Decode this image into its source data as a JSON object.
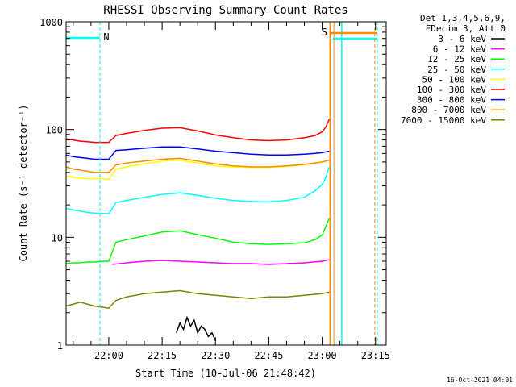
{
  "chart_data": {
    "type": "line",
    "title": "RHESSI Observing Summary Count Rates",
    "xlabel": "Start Time (10-Jul-06 21:48:42)",
    "ylabel": "Count Rate (s⁻¹ detector⁻¹)",
    "yscale": "log",
    "ylim": [
      1,
      1000
    ],
    "xlim_min": [
      -12,
      78
    ],
    "y_ticks": [
      "1",
      "10",
      "100",
      "1000"
    ],
    "x_ticks": [
      {
        "min": 0,
        "label": "22:00"
      },
      {
        "min": 15,
        "label": "22:15"
      },
      {
        "min": 30,
        "label": "22:30"
      },
      {
        "min": 45,
        "label": "22:45"
      },
      {
        "min": 60,
        "label": "23:00"
      },
      {
        "min": 75,
        "label": "23:15"
      }
    ],
    "legend_header": [
      "Det 1,3,4,5,6,9,",
      "FDecim 3, Att 0"
    ],
    "series": [
      {
        "name": "3 - 6 keV",
        "color": "#000000",
        "x": [
          19,
          20,
          21,
          22,
          23,
          24,
          25,
          26,
          27,
          28,
          29,
          30
        ],
        "y": [
          1.3,
          1.6,
          1.4,
          1.8,
          1.5,
          1.7,
          1.3,
          1.5,
          1.4,
          1.2,
          1.3,
          1.1
        ]
      },
      {
        "name": "6 - 12 keV",
        "color": "#ff00ff",
        "x": [
          1,
          5,
          10,
          15,
          20,
          25,
          30,
          35,
          40,
          45,
          50,
          55,
          60,
          62
        ],
        "y": [
          5.6,
          5.8,
          6.0,
          6.1,
          6.0,
          5.9,
          5.8,
          5.7,
          5.7,
          5.6,
          5.7,
          5.8,
          6.0,
          6.2
        ]
      },
      {
        "name": "12 - 25 keV",
        "color": "#00ff00",
        "x": [
          -12,
          -10,
          -8,
          -6,
          -4,
          -2,
          0,
          2,
          5,
          10,
          15,
          20,
          25,
          30,
          35,
          40,
          45,
          50,
          55,
          58,
          60,
          61,
          62
        ],
        "y": [
          5.7,
          5.8,
          5.8,
          5.9,
          5.9,
          6.0,
          6.0,
          9.0,
          9.5,
          10.3,
          11.2,
          11.5,
          10.6,
          9.8,
          9.0,
          8.7,
          8.6,
          8.7,
          8.9,
          9.5,
          10.5,
          12.5,
          15.0
        ]
      },
      {
        "name": "25 - 50 keV",
        "color": "#00ffff",
        "x": [
          -12,
          -10,
          -8,
          -6,
          -4,
          -2,
          0,
          2,
          5,
          10,
          15,
          20,
          25,
          30,
          35,
          40,
          45,
          50,
          55,
          58,
          60,
          61,
          62
        ],
        "y": [
          18.5,
          18.0,
          17.5,
          17.0,
          16.8,
          16.7,
          16.5,
          21.0,
          22.0,
          23.5,
          25.0,
          25.8,
          24.5,
          23.0,
          22.0,
          21.5,
          21.3,
          22.0,
          23.5,
          27.0,
          31.0,
          36.0,
          45.0
        ]
      },
      {
        "name": "50 - 100 keV",
        "color": "#ffff00",
        "x": [
          -12,
          -10,
          -8,
          -6,
          -4,
          -2,
          0,
          2,
          5,
          10,
          15,
          20,
          25,
          30,
          35,
          40,
          45,
          50,
          55,
          60,
          62
        ],
        "y": [
          37.0,
          36.0,
          35.5,
          35.0,
          35.0,
          35.0,
          34.5,
          43.0,
          45.0,
          48.0,
          51.0,
          52.0,
          49.0,
          46.0,
          45.0,
          44.5,
          44.5,
          45.5,
          47.0,
          50.0,
          52.0
        ]
      },
      {
        "name": "100 - 300 keV",
        "color": "#ff0000",
        "x": [
          -12,
          -10,
          -8,
          -6,
          -4,
          -2,
          0,
          2,
          5,
          10,
          15,
          20,
          25,
          30,
          35,
          40,
          45,
          50,
          55,
          58,
          60,
          61,
          62
        ],
        "y": [
          82.0,
          80.0,
          78.0,
          77.0,
          76.0,
          76.0,
          76.0,
          88.0,
          92.0,
          98.0,
          103.0,
          104.0,
          97.0,
          89.0,
          84.0,
          80.0,
          79.0,
          80.0,
          84.0,
          88.0,
          95.0,
          105.0,
          125.0
        ]
      },
      {
        "name": "300 - 800 keV",
        "color": "#0000ff",
        "x": [
          -12,
          -10,
          -8,
          -6,
          -4,
          -2,
          0,
          2,
          5,
          10,
          15,
          20,
          25,
          30,
          35,
          40,
          45,
          50,
          55,
          58,
          60,
          61,
          62
        ],
        "y": [
          58.0,
          56.0,
          55.0,
          54.0,
          53.0,
          53.0,
          53.0,
          64.0,
          65.0,
          67.0,
          69.0,
          69.0,
          66.0,
          63.0,
          61.0,
          59.0,
          58.0,
          58.0,
          59.0,
          60.0,
          61.0,
          62.0,
          63.0
        ]
      },
      {
        "name": "800 - 7000 keV",
        "color": "#ff8c00",
        "x": [
          -12,
          -10,
          -8,
          -6,
          -4,
          -2,
          0,
          2,
          5,
          10,
          15,
          20,
          25,
          30,
          35,
          40,
          45,
          50,
          55,
          60,
          62
        ],
        "y": [
          45.0,
          43.0,
          42.0,
          41.0,
          40.0,
          40.0,
          40.0,
          47.0,
          49.0,
          51.0,
          53.0,
          54.0,
          51.0,
          48.0,
          46.0,
          45.0,
          45.0,
          46.0,
          47.5,
          50.0,
          52.0
        ]
      },
      {
        "name": "7000 - 15000 keV",
        "color": "#808000",
        "x": [
          -12,
          -8,
          -4,
          0,
          2,
          5,
          10,
          15,
          20,
          25,
          30,
          35,
          40,
          45,
          50,
          55,
          60,
          62
        ],
        "y": [
          2.3,
          2.5,
          2.3,
          2.2,
          2.6,
          2.8,
          3.0,
          3.1,
          3.2,
          3.0,
          2.9,
          2.8,
          2.7,
          2.8,
          2.8,
          2.9,
          3.0,
          3.1
        ]
      }
    ],
    "annotations": [
      {
        "label": "N",
        "color": "#00ffff"
      },
      {
        "label": "S",
        "color": "#ff8c00"
      }
    ],
    "timestamp": "16-Oct-2021 04:01"
  }
}
